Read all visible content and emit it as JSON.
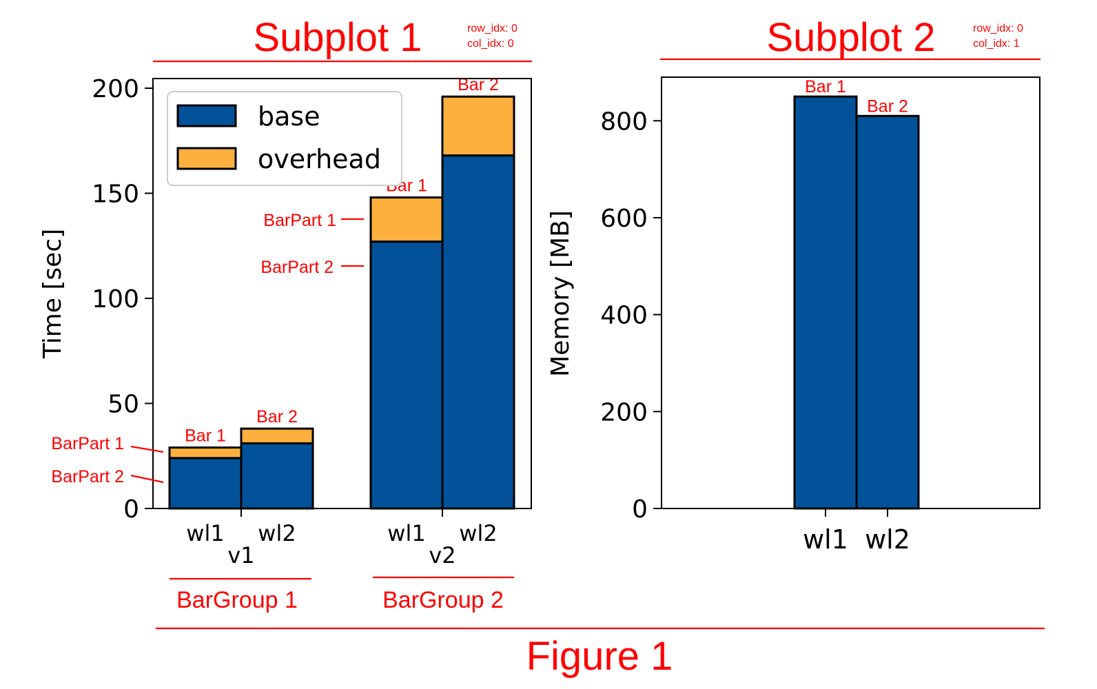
{
  "figure": {
    "label": "Figure 1"
  },
  "colors": {
    "base": "#02529a",
    "overhead": "#fdb03d",
    "annotation": "#ff0000"
  },
  "chart_data": [
    {
      "type": "bar",
      "stacked": true,
      "annotation": {
        "title": "Subplot 1",
        "row_idx_label": "row_idx: 0",
        "col_idx_label": "col_idx:  0"
      },
      "ylabel": "Time [sec]",
      "ylim": [
        0,
        200
      ],
      "yticks": [
        {
          "value": 0,
          "label": "0"
        },
        {
          "value": 50,
          "label": "50"
        },
        {
          "value": 100,
          "label": "100"
        },
        {
          "value": 150,
          "label": "150"
        },
        {
          "value": 200,
          "label": "200"
        }
      ],
      "legend": {
        "position": "top-left",
        "entries": [
          "base",
          "overhead"
        ]
      },
      "groups": [
        {
          "name": "v1",
          "group_label": "BarGroup 1",
          "bars": [
            {
              "category": "wl1",
              "base": 24,
              "overhead": 5,
              "label": "Bar 1"
            },
            {
              "category": "wl2",
              "base": 31,
              "overhead": 7,
              "label": "Bar 2"
            }
          ],
          "part_labels": [
            "BarPart 1",
            "BarPart 2"
          ]
        },
        {
          "name": "v2",
          "group_label": "BarGroup 2",
          "bars": [
            {
              "category": "wl1",
              "base": 127,
              "overhead": 21,
              "label": "Bar 1"
            },
            {
              "category": "wl2",
              "base": 168,
              "overhead": 28,
              "label": "Bar 2"
            }
          ],
          "part_labels": [
            "BarPart 1",
            "BarPart 2"
          ]
        }
      ]
    },
    {
      "type": "bar",
      "annotation": {
        "title": "Subplot 2",
        "row_idx_label": "row_idx: 0",
        "col_idx_label": "col_idx:  1"
      },
      "ylabel": "Memory [MB]",
      "ylim": [
        0,
        890
      ],
      "yticks": [
        {
          "value": 0,
          "label": "0"
        },
        {
          "value": 200,
          "label": "200"
        },
        {
          "value": 400,
          "label": "400"
        },
        {
          "value": 600,
          "label": "600"
        },
        {
          "value": 800,
          "label": "800"
        }
      ],
      "categories": [
        "wl1",
        "wl2"
      ],
      "values": [
        850,
        810
      ],
      "bar_labels": [
        "Bar 1",
        "Bar 2"
      ]
    }
  ]
}
